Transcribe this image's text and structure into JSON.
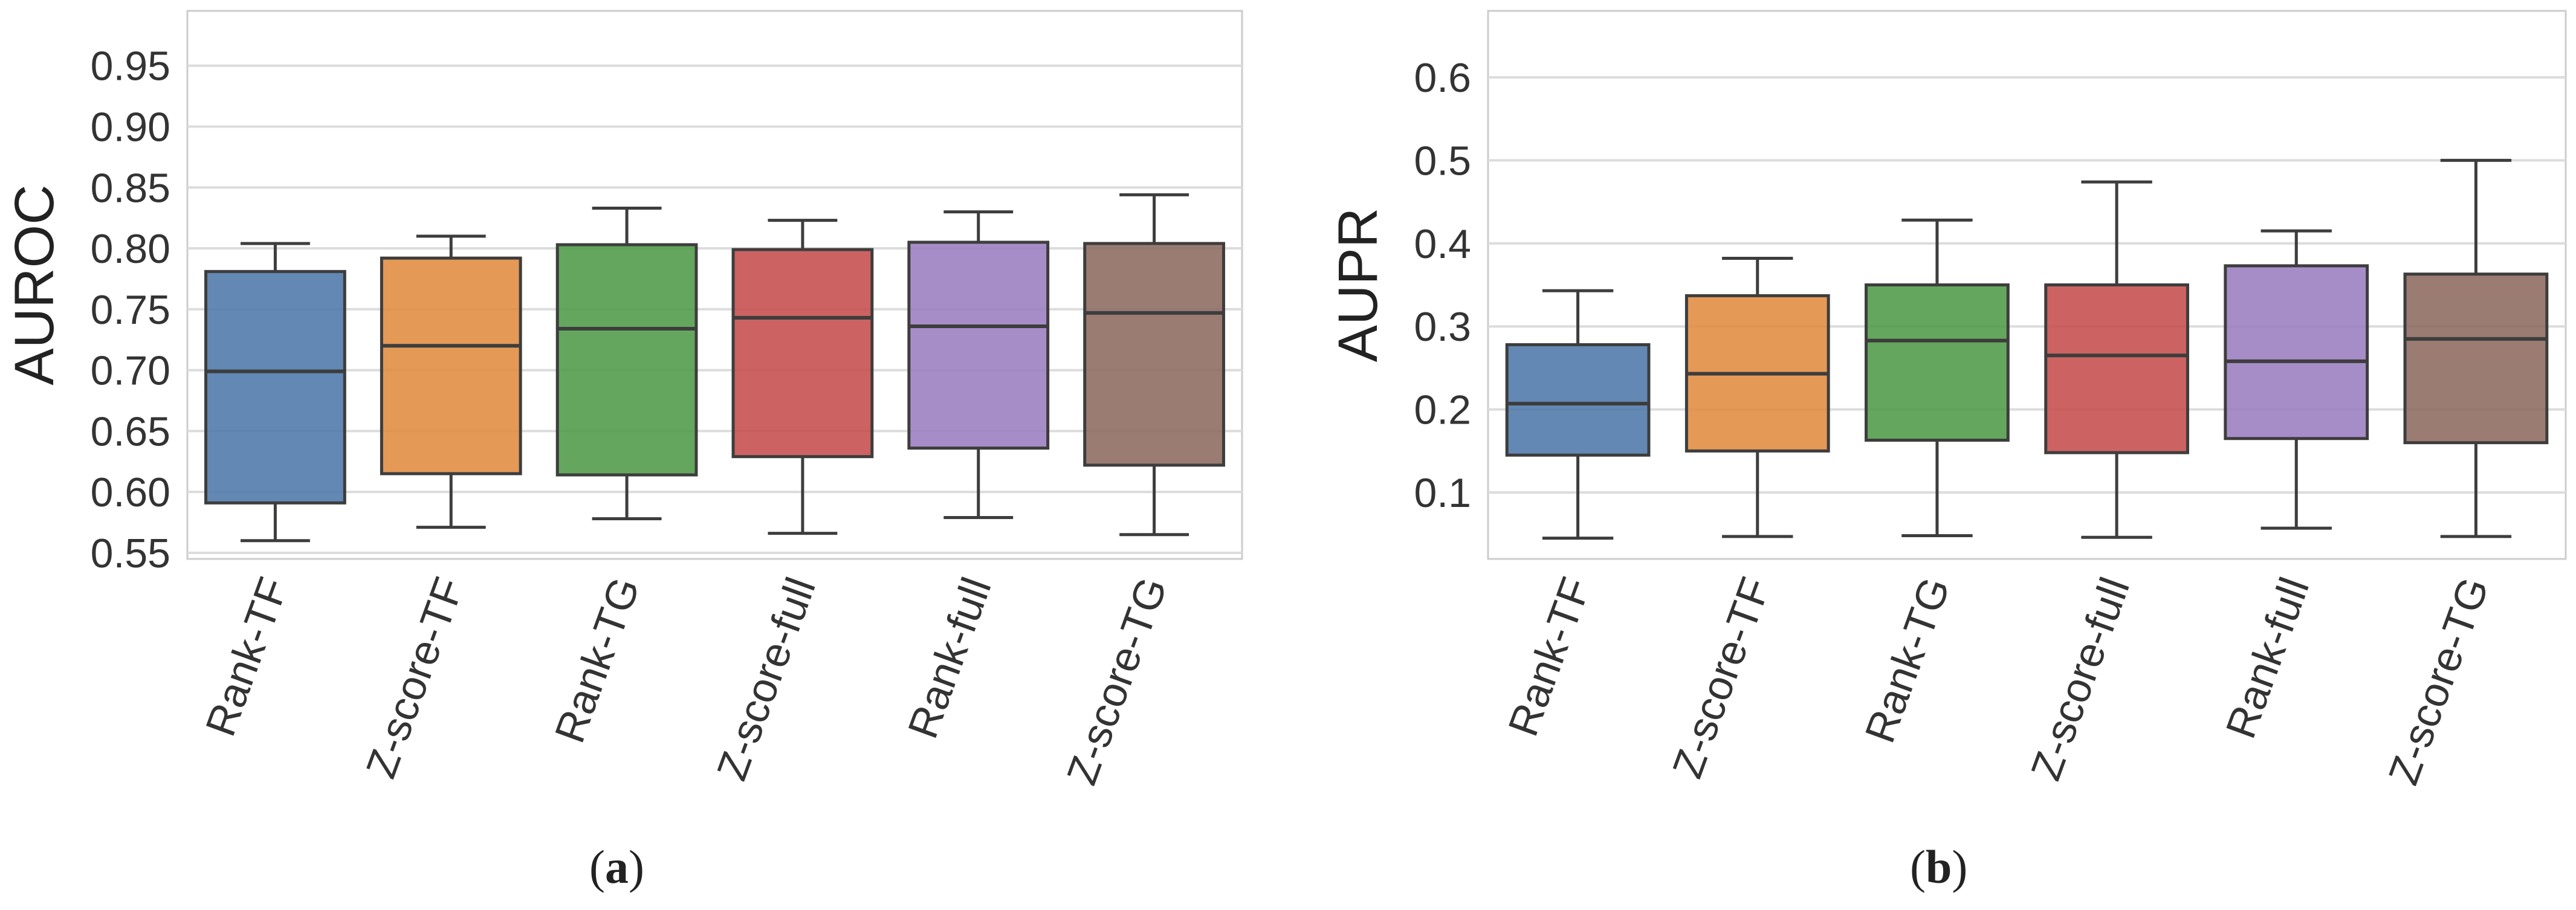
{
  "colors": [
    "#4c78a8",
    "#e08b3f",
    "#4e9a48",
    "#c64c4c",
    "#9b7dbf",
    "#8c6a5f"
  ],
  "chart_data": [
    {
      "type": "box",
      "panel": "(a)",
      "panel_letter": "a",
      "ylabel": "AUROC",
      "ylim": [
        0.545,
        0.995
      ],
      "yticks": [
        0.55,
        0.6,
        0.65,
        0.7,
        0.75,
        0.8,
        0.85,
        0.9,
        0.95
      ],
      "ytick_labels": [
        "0.55",
        "0.60",
        "0.65",
        "0.70",
        "0.75",
        "0.80",
        "0.85",
        "0.90",
        "0.95"
      ],
      "categories": [
        "Rank-TF",
        "Z-score-TF",
        "Rank-TG",
        "Z-score-full",
        "Rank-full",
        "Z-score-TG"
      ],
      "boxes": [
        {
          "whislo": 0.56,
          "q1": 0.591,
          "med": 0.699,
          "q3": 0.781,
          "whishi": 0.804
        },
        {
          "whislo": 0.571,
          "q1": 0.615,
          "med": 0.72,
          "q3": 0.792,
          "whishi": 0.81
        },
        {
          "whislo": 0.578,
          "q1": 0.614,
          "med": 0.734,
          "q3": 0.803,
          "whishi": 0.833
        },
        {
          "whislo": 0.566,
          "q1": 0.629,
          "med": 0.743,
          "q3": 0.799,
          "whishi": 0.823
        },
        {
          "whislo": 0.579,
          "q1": 0.636,
          "med": 0.736,
          "q3": 0.805,
          "whishi": 0.83
        },
        {
          "whislo": 0.565,
          "q1": 0.622,
          "med": 0.747,
          "q3": 0.804,
          "whishi": 0.844
        }
      ]
    },
    {
      "type": "box",
      "panel": "(b)",
      "panel_letter": "b",
      "ylabel": "AUPR",
      "ylim": [
        0.02,
        0.68
      ],
      "yticks": [
        0.1,
        0.2,
        0.3,
        0.4,
        0.5,
        0.6
      ],
      "ytick_labels": [
        "0.1",
        "0.2",
        "0.3",
        "0.4",
        "0.5",
        "0.6"
      ],
      "categories": [
        "Rank-TF",
        "Z-score-TF",
        "Rank-TG",
        "Z-score-full",
        "Rank-full",
        "Z-score-TG"
      ],
      "boxes": [
        {
          "whislo": 0.045,
          "q1": 0.145,
          "med": 0.207,
          "q3": 0.278,
          "whishi": 0.343
        },
        {
          "whislo": 0.047,
          "q1": 0.15,
          "med": 0.243,
          "q3": 0.337,
          "whishi": 0.382
        },
        {
          "whislo": 0.048,
          "q1": 0.163,
          "med": 0.283,
          "q3": 0.35,
          "whishi": 0.428
        },
        {
          "whislo": 0.046,
          "q1": 0.148,
          "med": 0.265,
          "q3": 0.35,
          "whishi": 0.474
        },
        {
          "whislo": 0.057,
          "q1": 0.165,
          "med": 0.258,
          "q3": 0.373,
          "whishi": 0.415
        },
        {
          "whislo": 0.047,
          "q1": 0.16,
          "med": 0.285,
          "q3": 0.363,
          "whishi": 0.5
        }
      ]
    }
  ]
}
